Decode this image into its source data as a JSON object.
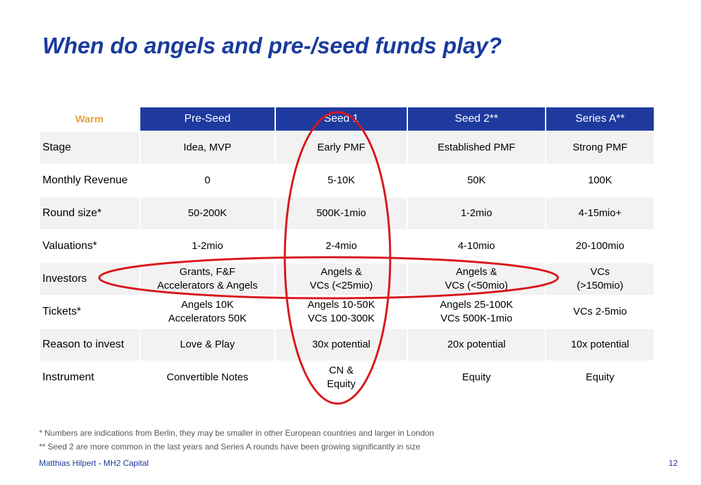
{
  "slide": {
    "title": "When do angels and pre-/seed funds play?",
    "page_number": "12",
    "author": "Matthias Hilpert - MH2 Capital"
  },
  "table": {
    "corner_label": "Warm",
    "headers": [
      "Pre-Seed",
      "Seed 1",
      "Seed 2**",
      "Series A**"
    ],
    "rows": [
      {
        "label": "Stage",
        "cells": [
          [
            "Idea, MVP"
          ],
          [
            "Early PMF"
          ],
          [
            "Established PMF"
          ],
          [
            "Strong PMF"
          ]
        ]
      },
      {
        "label": "Monthly Revenue",
        "cells": [
          [
            "0"
          ],
          [
            "5-10K"
          ],
          [
            "50K"
          ],
          [
            "100K"
          ]
        ]
      },
      {
        "label": "Round size*",
        "cells": [
          [
            "50-200K"
          ],
          [
            "500K-1mio"
          ],
          [
            "1-2mio"
          ],
          [
            "4-15mio+"
          ]
        ]
      },
      {
        "label": "Valuations*",
        "cells": [
          [
            "1-2mio"
          ],
          [
            "2-4mio"
          ],
          [
            "4-10mio"
          ],
          [
            "20-100mio"
          ]
        ]
      },
      {
        "label": "Investors",
        "cells": [
          [
            "Grants, F&F",
            "Accelerators & Angels"
          ],
          [
            "Angels &",
            "VCs (<25mio)"
          ],
          [
            "Angels &",
            "VCs (<50mio)"
          ],
          [
            "VCs",
            "(>150mio)"
          ]
        ]
      },
      {
        "label": "Tickets*",
        "cells": [
          [
            "Angels 10K",
            "Accelerators 50K"
          ],
          [
            "Angels 10-50K",
            "VCs 100-300K"
          ],
          [
            "Angels 25-100K",
            "VCs 500K-1mio"
          ],
          [
            "VCs 2-5mio"
          ]
        ]
      },
      {
        "label": "Reason to invest",
        "cells": [
          [
            "Love & Play"
          ],
          [
            "30x potential"
          ],
          [
            "20x potential"
          ],
          [
            "10x potential"
          ]
        ]
      },
      {
        "label": "Instrument",
        "cells": [
          [
            "Convertible Notes"
          ],
          [
            "CN &",
            "Equity"
          ],
          [
            "Equity"
          ],
          [
            "Equity"
          ]
        ]
      }
    ]
  },
  "footnotes": [
    "*   Numbers are indications from Berlin, they may be smaller in other European countries and larger in London",
    "**  Seed 2 are more common in the last years and Series A rounds have been growing significantly in size"
  ],
  "colors": {
    "header_bg": "#1f3a9e",
    "title": "#1a3a9c",
    "highlight_ellipse": "#d9161c",
    "corner_label": "#e8a33a"
  }
}
